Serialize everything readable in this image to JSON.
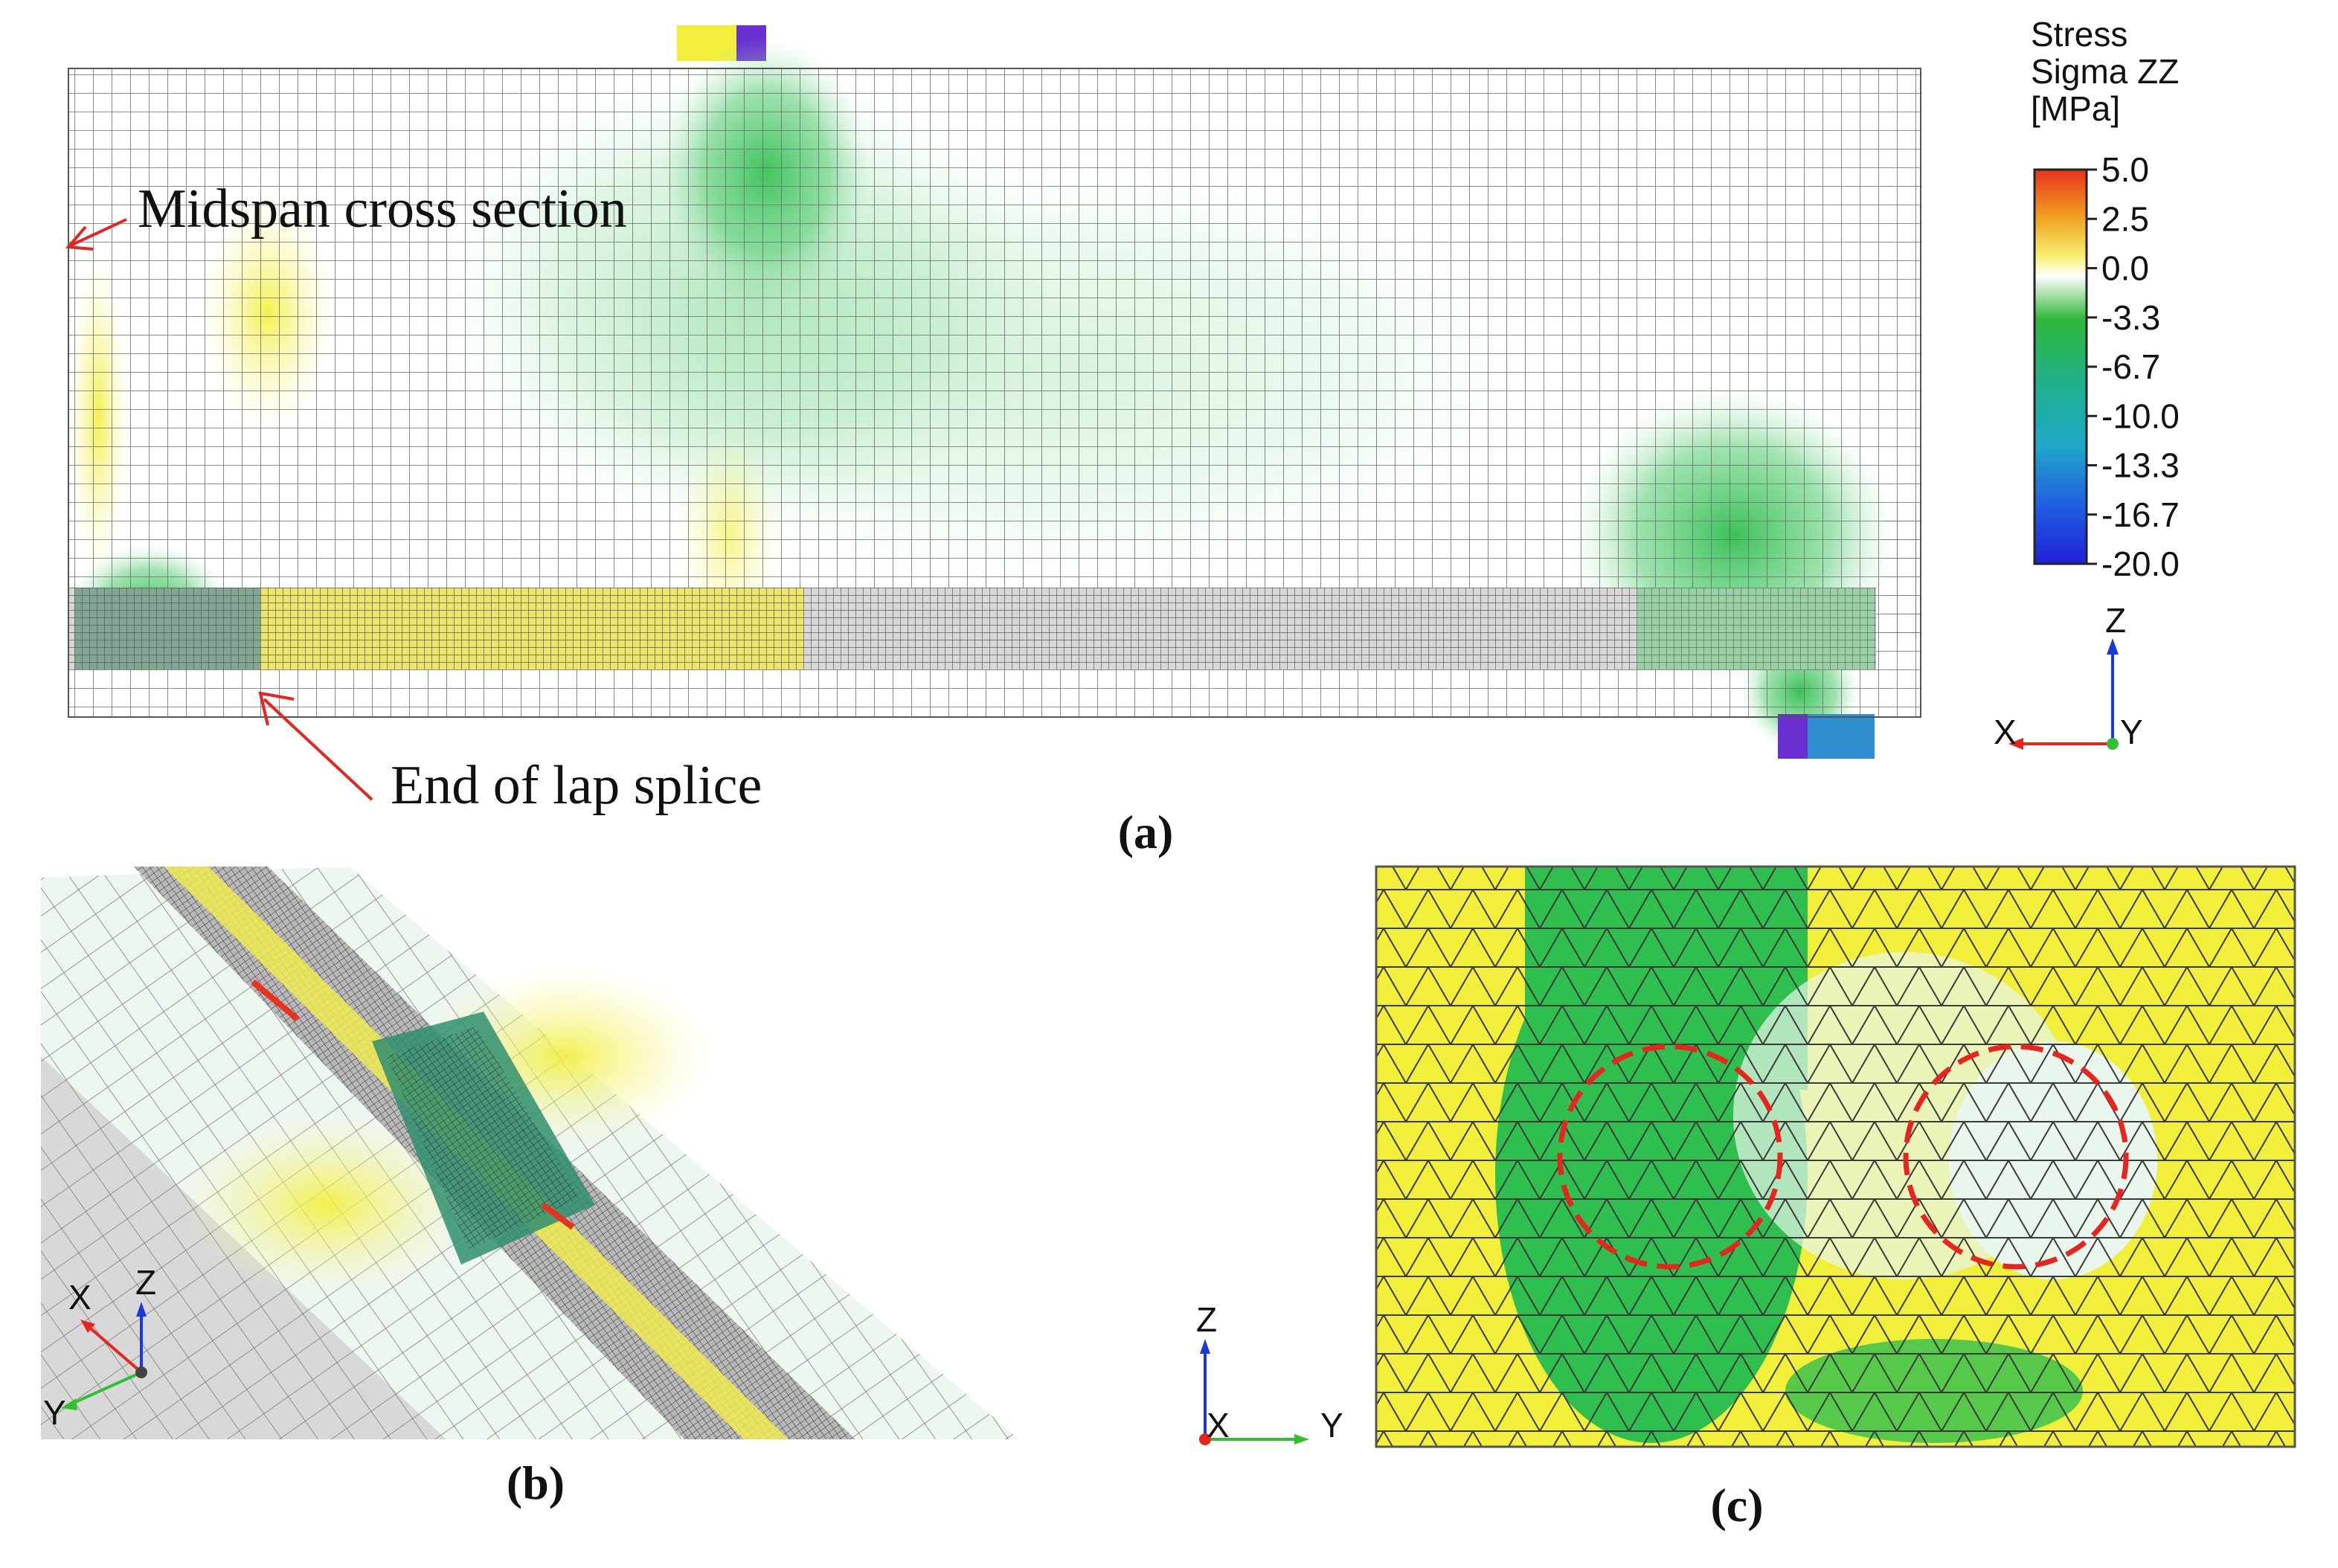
{
  "panels": {
    "a": {
      "caption": "(a)",
      "annotations": {
        "midspan": "Midspan cross section",
        "lap_splice": "End of lap splice"
      }
    },
    "b": {
      "caption": "(b)"
    },
    "c": {
      "caption": "(c)"
    }
  },
  "legend": {
    "title_lines": [
      "Stress",
      "Sigma ZZ",
      "[MPa]"
    ],
    "ticks": [
      "5.0",
      "2.5",
      "0.0",
      "-3.3",
      "-6.7",
      "-10.0",
      "-13.3",
      "-16.7",
      "-20.0"
    ],
    "colors": [
      "#e8321e",
      "#f0a020",
      "#f5f060",
      "#ffffff",
      "#30b838",
      "#20b090",
      "#20a8c8",
      "#2060e0",
      "#2020d8"
    ]
  },
  "axes": {
    "a": {
      "vertical": "Z",
      "horizontal": "X",
      "depth": "Y"
    },
    "b": {
      "vertical": "Z",
      "diag": "X",
      "horizontal": "Y"
    },
    "c": {
      "vertical": "Z",
      "depth": "X",
      "horizontal": "Y"
    }
  },
  "colors": {
    "green": "#2fbf4f",
    "yellow": "#f2ef3a",
    "mesh": "#555555",
    "arrow": "#e8241e",
    "dash_circle": "#e8241e"
  }
}
